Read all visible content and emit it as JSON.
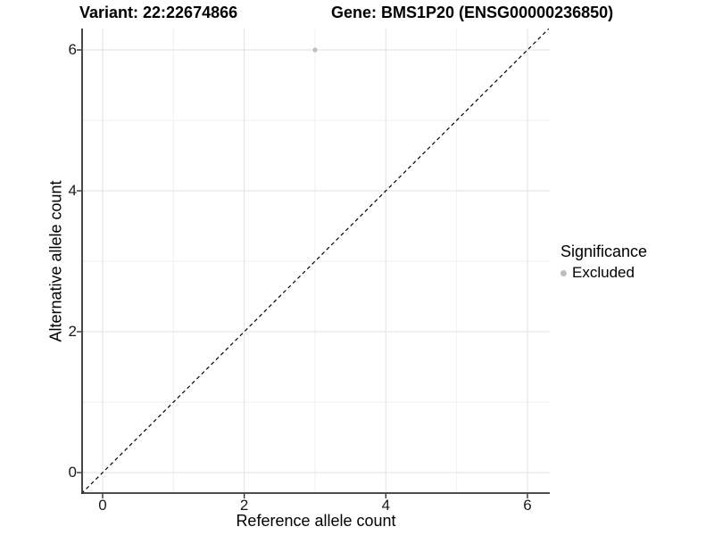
{
  "titles": {
    "variant": "Variant: 22:22674866",
    "gene": "Gene: BMS1P20 (ENSG00000236850)"
  },
  "chart_data": {
    "type": "scatter",
    "title": "Variant: 22:22674866   Gene: BMS1P20 (ENSG00000236850)",
    "xlabel": "Reference allele count",
    "ylabel": "Alternative allele count",
    "xlim": [
      -0.3,
      6.3
    ],
    "ylim": [
      -0.3,
      6.3
    ],
    "x_ticks": [
      0,
      2,
      4,
      6
    ],
    "y_ticks": [
      0,
      2,
      4,
      6
    ],
    "x_minor_ticks": [
      1,
      3,
      5
    ],
    "y_minor_ticks": [
      1,
      3,
      5
    ],
    "grid": true,
    "points": [
      {
        "x": 3,
        "y": 6,
        "series": "Excluded"
      }
    ],
    "identity_line": {
      "style": "dashed",
      "from": [
        -0.3,
        -0.3
      ],
      "to": [
        6.3,
        6.3
      ]
    },
    "legend": {
      "title": "Significance",
      "position": "right",
      "items": [
        {
          "label": "Excluded",
          "color": "#bebebe",
          "marker": "circle"
        }
      ]
    }
  },
  "colors": {
    "background": "#ffffff",
    "grid_major": "#e6e6e6",
    "grid_minor": "#efefef",
    "axis_line": "#333333",
    "dashed_line": "#000000",
    "point": "#bebebe",
    "title_text": "#000000",
    "tick_text": "#1a1a1a"
  }
}
